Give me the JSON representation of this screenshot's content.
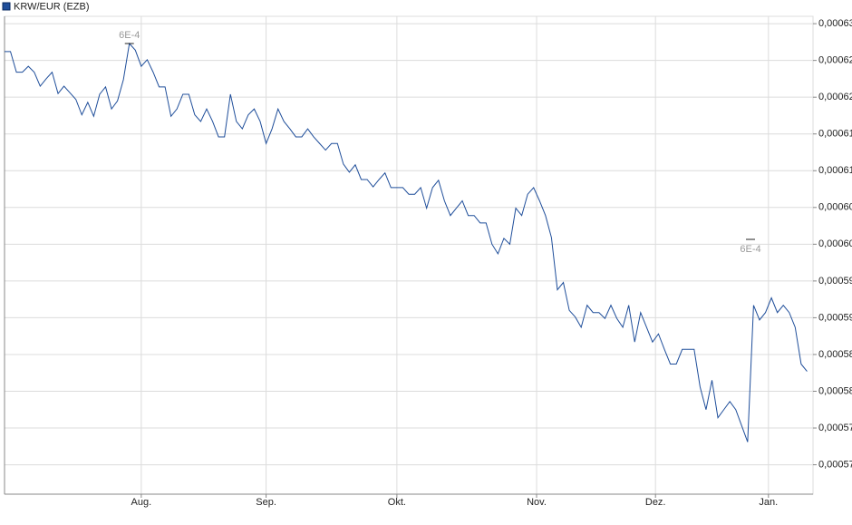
{
  "chart_data": {
    "type": "line",
    "legend": "KRW/EUR (EZB)",
    "annotations": [
      {
        "text": "6E-4"
      },
      {
        "text": "6E-4"
      }
    ],
    "x": [
      0,
      1,
      2,
      3,
      4,
      5,
      6,
      7,
      8,
      9,
      10,
      11,
      12,
      13,
      14,
      15,
      16,
      17,
      18,
      19,
      20,
      21,
      22,
      23,
      24,
      25,
      26,
      27,
      28,
      29,
      30,
      31,
      32,
      33,
      34,
      35,
      36,
      37,
      38,
      39,
      40,
      41,
      42,
      43,
      44,
      45,
      46,
      47,
      48,
      49,
      50,
      51,
      52,
      53,
      54,
      55,
      56,
      57,
      58,
      59,
      60,
      61,
      62,
      63,
      64,
      65,
      66,
      67,
      68,
      69,
      70,
      71,
      72,
      73,
      74,
      75,
      76,
      77,
      78,
      79,
      80,
      81,
      82,
      83,
      84,
      85,
      86,
      87,
      88,
      89,
      90,
      91,
      92,
      93,
      94,
      95,
      96,
      97,
      98,
      99,
      100,
      101,
      102,
      103,
      104,
      105,
      106,
      107,
      108,
      109,
      110,
      111,
      112,
      113,
      114,
      115,
      116,
      117,
      118,
      119,
      120,
      121,
      122,
      123,
      124,
      125,
      126,
      127,
      128,
      129,
      130,
      131,
      132,
      133,
      134,
      135
    ],
    "series": [
      {
        "name": "KRW/EUR (EZB)",
        "color": "#1f4e9a",
        "values": [
          0.0006262,
          0.0006262,
          0.0006234,
          0.0006234,
          0.0006242,
          0.0006234,
          0.0006215,
          0.0006225,
          0.0006234,
          0.0006205,
          0.0006215,
          0.0006206,
          0.0006197,
          0.0006176,
          0.0006193,
          0.0006174,
          0.0006204,
          0.0006214,
          0.0006184,
          0.0006195,
          0.0006224,
          0.0006273,
          0.0006264,
          0.0006242,
          0.0006251,
          0.0006234,
          0.0006214,
          0.0006214,
          0.0006174,
          0.0006184,
          0.0006204,
          0.0006204,
          0.0006176,
          0.0006167,
          0.0006184,
          0.0006167,
          0.0006146,
          0.0006146,
          0.0006204,
          0.0006167,
          0.0006157,
          0.0006176,
          0.0006184,
          0.0006167,
          0.0006137,
          0.0006157,
          0.0006184,
          0.0006167,
          0.0006157,
          0.0006146,
          0.0006146,
          0.0006157,
          0.0006146,
          0.0006137,
          0.0006128,
          0.0006137,
          0.0006137,
          0.0006109,
          0.0006098,
          0.0006108,
          0.0006088,
          0.0006088,
          0.0006078,
          0.0006088,
          0.0006097,
          0.0006077,
          0.0006077,
          0.0006077,
          0.0006068,
          0.0006068,
          0.0006077,
          0.0006049,
          0.0006077,
          0.0006087,
          0.0006059,
          0.0006039,
          0.0006049,
          0.0006059,
          0.0006039,
          0.0006039,
          0.0006029,
          0.0006029,
          0.0006,
          0.0005987,
          0.0006008,
          0.0006,
          0.0006049,
          0.0006039,
          0.0006068,
          0.0006077,
          0.0006059,
          0.0006039,
          0.0006009,
          0.0005938,
          0.0005948,
          0.000591,
          0.0005901,
          0.0005887,
          0.0005917,
          0.0005907,
          0.0005907,
          0.0005899,
          0.0005917,
          0.0005899,
          0.0005887,
          0.0005917,
          0.0005867,
          0.0005907,
          0.0005887,
          0.0005867,
          0.0005878,
          0.0005857,
          0.0005837,
          0.0005837,
          0.0005857,
          0.0005857,
          0.0005857,
          0.0005806,
          0.0005775,
          0.0005815,
          0.0005764,
          0.0005775,
          0.0005786,
          0.0005775,
          0.0005753,
          0.0005731,
          0.0005917,
          0.0005897,
          0.0005907,
          0.0005927,
          0.0005907,
          0.0005917,
          0.0005907,
          0.0005887,
          0.0005837,
          0.0005827
        ]
      }
    ],
    "xlim": [
      0,
      136
    ],
    "xticks": [
      {
        "value": 23,
        "label": "Aug."
      },
      {
        "value": 44,
        "label": "Sep."
      },
      {
        "value": 66,
        "label": "Okt."
      },
      {
        "value": 89.5,
        "label": "Nov."
      },
      {
        "value": 109.5,
        "label": "Dez."
      },
      {
        "value": 128.5,
        "label": "Jan."
      }
    ],
    "ylim": [
      0.000566,
      0.000631
    ],
    "yticks": [
      {
        "value": 0.00063,
        "label": "0,00063"
      },
      {
        "value": 0.000625,
        "label": "0,00062"
      },
      {
        "value": 0.00062,
        "label": "0,00062"
      },
      {
        "value": 0.000615,
        "label": "0,00061"
      },
      {
        "value": 0.00061,
        "label": "0,00061"
      },
      {
        "value": 0.000605,
        "label": "0,00060"
      },
      {
        "value": 0.0006,
        "label": "0,00060"
      },
      {
        "value": 0.000595,
        "label": "0,00059"
      },
      {
        "value": 0.00059,
        "label": "0,00059"
      },
      {
        "value": 0.000585,
        "label": "0,00058"
      },
      {
        "value": 0.00058,
        "label": "0,00058"
      },
      {
        "value": 0.000575,
        "label": "0,00057"
      },
      {
        "value": 0.00057,
        "label": "0,00057"
      }
    ],
    "grid": true
  }
}
